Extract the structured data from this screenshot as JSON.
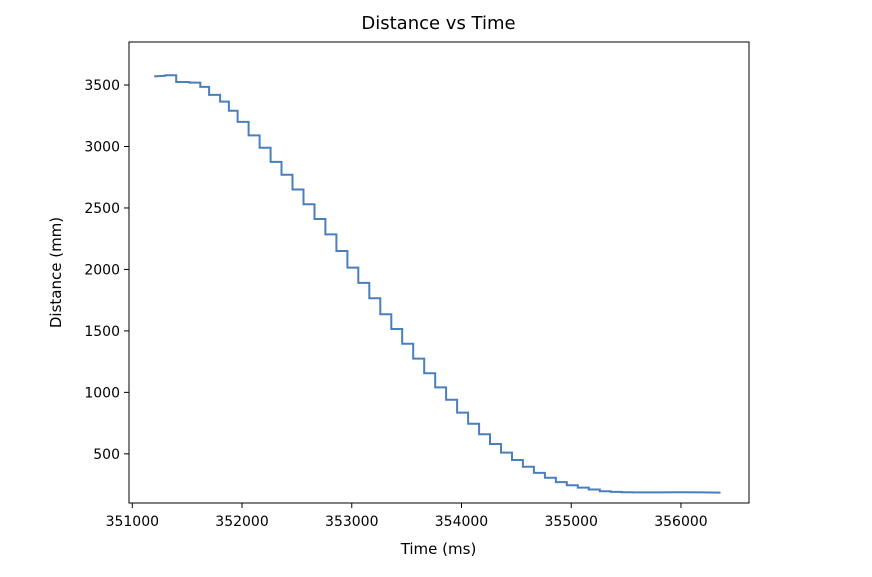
{
  "chart_data": {
    "type": "line",
    "title": "Distance vs Time",
    "xlabel": "Time (ms)",
    "ylabel": "Distance (mm)",
    "xlim": [
      350970,
      356620
    ],
    "ylim": [
      100,
      3850
    ],
    "xticks": [
      351000,
      352000,
      353000,
      354000,
      355000,
      356000
    ],
    "yticks": [
      500,
      1000,
      1500,
      2000,
      2500,
      3000,
      3500
    ],
    "grid": false,
    "line_color": "#4a7fbd",
    "series": [
      {
        "x": [
          351200,
          351300,
          351300,
          351380,
          351400,
          351400,
          351520,
          351520,
          351620,
          351620,
          351700,
          351700,
          351800,
          351800,
          351880,
          351880,
          351960,
          351960,
          352060,
          352060,
          352160,
          352160,
          352260,
          352260,
          352360,
          352360,
          352460,
          352460,
          352560,
          352560,
          352660,
          352660,
          352760,
          352760,
          352860,
          352860,
          352960,
          352960,
          353060,
          353060,
          353160,
          353160,
          353260,
          353260,
          353360,
          353360,
          353460,
          353460,
          353560,
          353560,
          353660,
          353660,
          353760,
          353760,
          353860,
          353860,
          353960,
          353960,
          354060,
          354060,
          354160,
          354160,
          354260,
          354260,
          354360,
          354360,
          354460,
          354460,
          354560,
          354560,
          354660,
          354660,
          354760,
          354760,
          354860,
          354860,
          354960,
          354960,
          355060,
          355060,
          355160,
          355160,
          355260,
          355260,
          355360,
          355360,
          355460,
          355460,
          355560,
          355560,
          355660,
          355800,
          356000,
          356200,
          356360
        ],
        "y": [
          3570,
          3575,
          3580,
          3580,
          3580,
          3525,
          3525,
          3520,
          3520,
          3485,
          3485,
          3420,
          3420,
          3365,
          3365,
          3290,
          3290,
          3200,
          3200,
          3090,
          3090,
          2990,
          2990,
          2875,
          2875,
          2770,
          2770,
          2650,
          2650,
          2530,
          2530,
          2410,
          2410,
          2285,
          2285,
          2150,
          2150,
          2015,
          2015,
          1890,
          1890,
          1765,
          1765,
          1635,
          1635,
          1515,
          1515,
          1395,
          1395,
          1275,
          1275,
          1155,
          1155,
          1040,
          1040,
          940,
          940,
          835,
          835,
          745,
          745,
          660,
          660,
          580,
          580,
          510,
          510,
          450,
          450,
          395,
          395,
          345,
          345,
          305,
          305,
          270,
          270,
          245,
          245,
          225,
          225,
          210,
          210,
          195,
          195,
          190,
          190,
          188,
          188,
          186,
          186,
          186,
          187,
          186,
          185
        ]
      }
    ]
  }
}
